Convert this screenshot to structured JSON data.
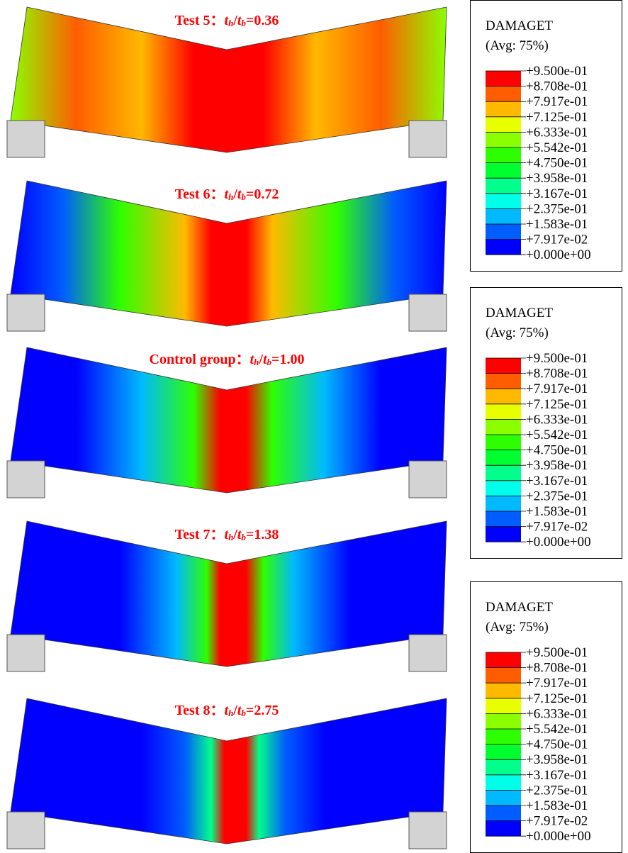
{
  "panels": [
    {
      "prefix": "Test 5：",
      "ratio": "0.36"
    },
    {
      "prefix": "Test 6：",
      "ratio": "0.72"
    },
    {
      "prefix": "Control group：",
      "ratio": "1.00"
    },
    {
      "prefix": "Test 7：",
      "ratio": "1.38"
    },
    {
      "prefix": "Test 8：",
      "ratio": "2.75"
    }
  ],
  "ratio_symbol": {
    "t": "t",
    "num_sub": "h",
    "slash": "/",
    "den_sub": "b",
    "equals": "="
  },
  "legends": [
    {
      "title": "DAMAGET",
      "subtitle": "(Avg: 75%)",
      "labels": [
        "+9.500e-01",
        "+8.708e-01",
        "+7.917e-01",
        "+7.125e-01",
        "+6.333e-01",
        "+5.542e-01",
        "+4.750e-01",
        "+3.958e-01",
        "+3.167e-01",
        "+2.375e-01",
        "+1.583e-01",
        "+7.917e-02",
        "+0.000e+00"
      ]
    },
    {
      "title": "DAMAGET",
      "subtitle": "(Avg: 75%)",
      "labels": [
        "+9.500e-01",
        "+8.708e-01",
        "+7.917e-01",
        "+7.125e-01",
        "+6.333e-01",
        "+5.542e-01",
        "+4.750e-01",
        "+3.958e-01",
        "+3.167e-01",
        "+2.375e-01",
        "+1.583e-01",
        "+7.917e-02",
        "+0.000e+00"
      ]
    },
    {
      "title": "DAMAGET",
      "subtitle": "(Avg: 75%)",
      "labels": [
        "+9.500e-01",
        "+8.708e-01",
        "+7.917e-01",
        "+7.125e-01",
        "+6.333e-01",
        "+5.542e-01",
        "+4.750e-01",
        "+3.958e-01",
        "+3.167e-01",
        "+2.375e-01",
        "+1.583e-01",
        "+7.917e-02",
        "+0.000e+00"
      ]
    }
  ],
  "legend_colors": [
    "#ff0000",
    "#ff5d00",
    "#ffb900",
    "#e8ff00",
    "#8bff00",
    "#2eff00",
    "#00ff2e",
    "#00ff8b",
    "#00ffe8",
    "#00b9ff",
    "#005dff",
    "#0000ff"
  ]
}
